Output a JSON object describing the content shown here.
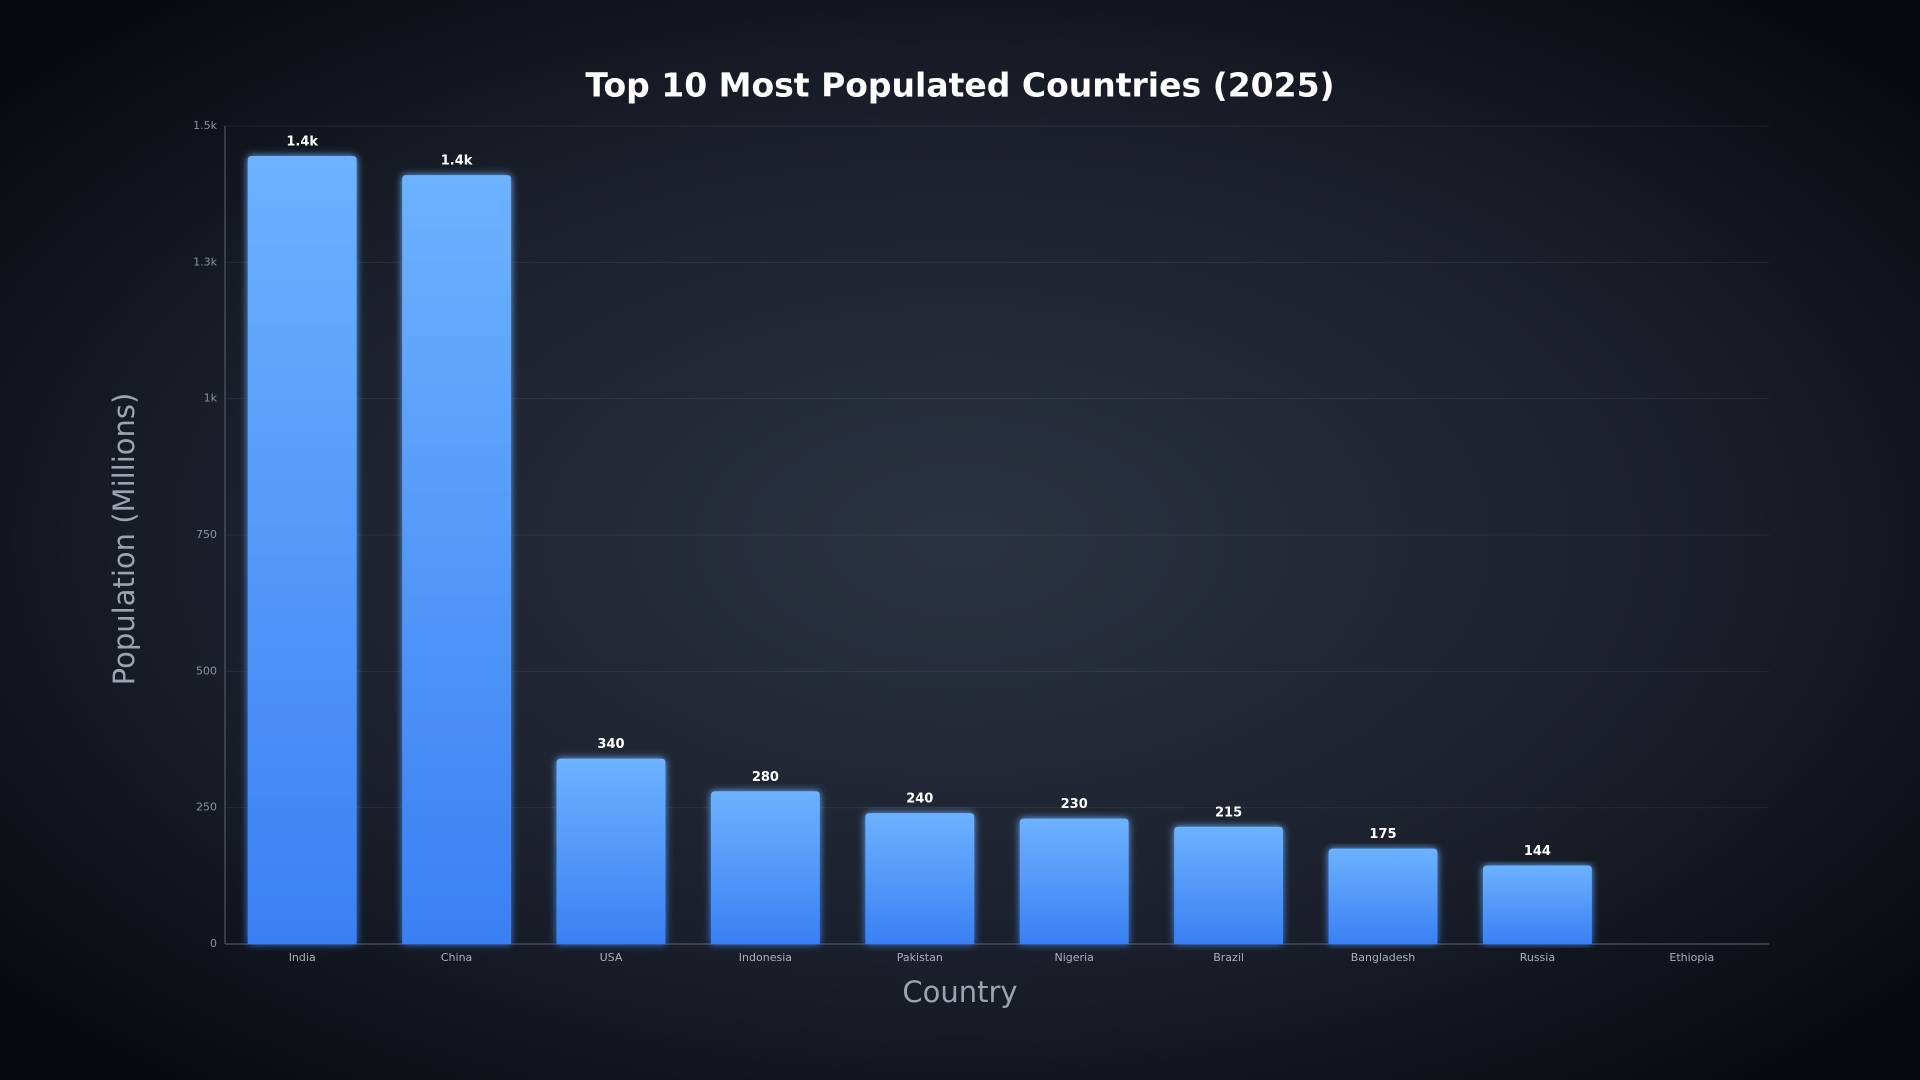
{
  "chart_data": {
    "type": "bar",
    "title": "Top 10 Most Populated Countries (2025)",
    "x_label": "Country",
    "y_label": "Population (Millions)",
    "categories": [
      "India",
      "China",
      "USA",
      "Indonesia",
      "Pakistan",
      "Nigeria",
      "Brazil",
      "Bangladesh",
      "Russia",
      "Ethiopia"
    ],
    "values": [
      1445,
      1410,
      340,
      280,
      240,
      230,
      215,
      175,
      144,
      null
    ],
    "value_labels": [
      "1.4k",
      "1.4k",
      "340",
      "280",
      "240",
      "230",
      "215",
      "175",
      "144",
      null
    ],
    "color": "#4a92fb",
    "ylim": [
      0,
      1500
    ],
    "yticks": [
      0,
      250,
      500,
      750,
      {
        "value": 1000,
        "label": "1k"
      },
      {
        "value": 1250,
        "label": "1.3k"
      },
      {
        "value": 1500,
        "label": "1.5k"
      }
    ],
    "grid": true
  }
}
